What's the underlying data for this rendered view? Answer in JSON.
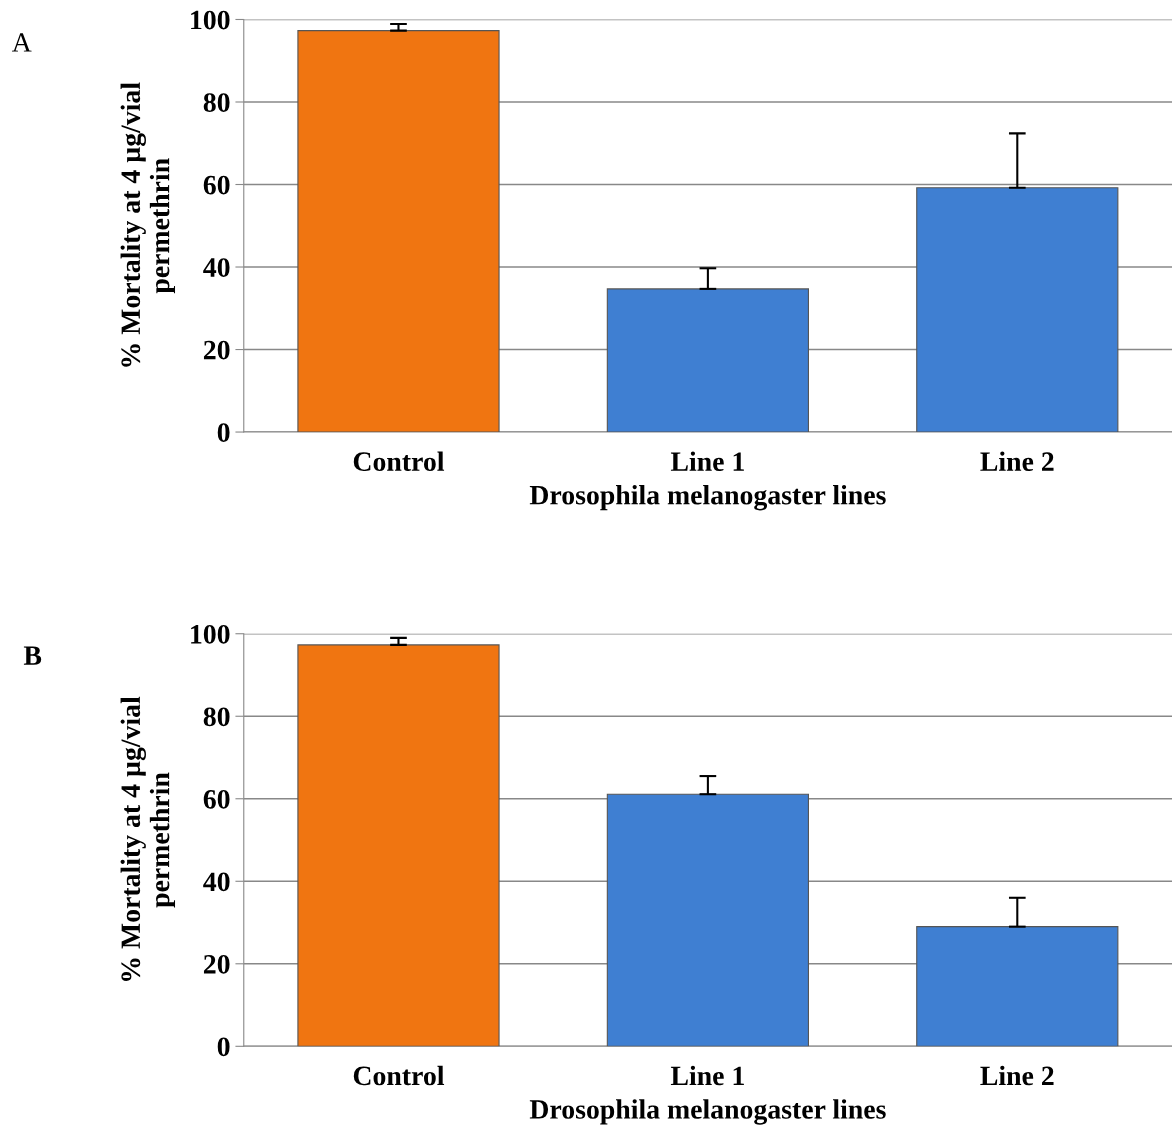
{
  "chart_data": [
    {
      "type": "bar",
      "annotations": [
        "A"
      ],
      "xlabel": "Drosophila melanogaster lines",
      "ylabel": "% Mortality at 4 µg/vial\npermethrin",
      "categories": [
        "Control",
        "Line 1",
        "Line 2"
      ],
      "values": [
        97.3,
        34.7,
        59.2
      ],
      "colors": [
        "#f07511",
        "#3f7fd2",
        "#3f7fd2"
      ],
      "errors": [
        [
          97.3,
          98.9
        ],
        [
          34.7,
          39.7
        ],
        [
          59.2,
          72.4
        ]
      ],
      "ylim": [
        0,
        100
      ],
      "yticks": [
        0,
        20,
        40,
        60,
        80,
        100
      ],
      "grid": "y"
    },
    {
      "type": "bar",
      "annotations": [
        "B"
      ],
      "xlabel": "Drosophila melanogaster lines",
      "ylabel": "% Mortality at 4 µg/vial\npermethrin",
      "categories": [
        "Control",
        "Line 1",
        "Line 2"
      ],
      "values": [
        97.3,
        61.1,
        29.0
      ],
      "colors": [
        "#f07511",
        "#3f7fd2",
        "#3f7fd2"
      ],
      "errors": [
        [
          97.3,
          99.0
        ],
        [
          61.1,
          65.5
        ],
        [
          29.0,
          36.0
        ]
      ],
      "ylim": [
        0,
        100
      ],
      "yticks": [
        0,
        20,
        40,
        60,
        80,
        100
      ],
      "grid": "y"
    }
  ]
}
